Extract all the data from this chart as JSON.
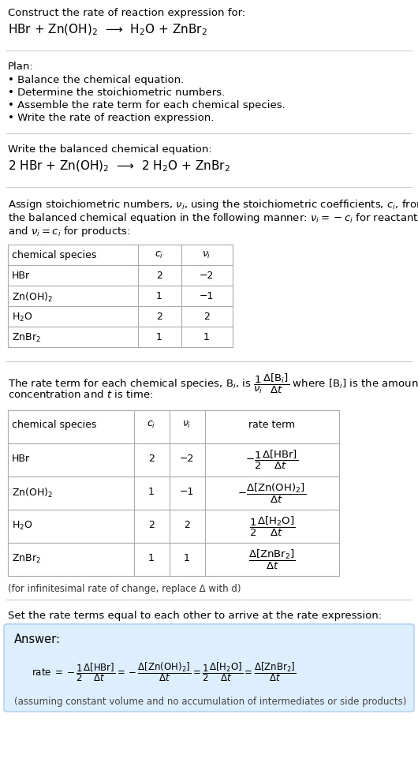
{
  "title_line1": "Construct the rate of reaction expression for:",
  "reaction_unbalanced": "HBr + Zn(OH)$_2$  ⟶  H$_2$O + ZnBr$_2$",
  "plan_header": "Plan:",
  "plan_items": [
    "• Balance the chemical equation.",
    "• Determine the stoichiometric numbers.",
    "• Assemble the rate term for each chemical species.",
    "• Write the rate of reaction expression."
  ],
  "balanced_header": "Write the balanced chemical equation:",
  "reaction_balanced": "2 HBr + Zn(OH)$_2$  ⟶  2 H$_2$O + ZnBr$_2$",
  "stoich_intro_lines": [
    "Assign stoichiometric numbers, $\\nu_i$, using the stoichiometric coefficients, $c_i$, from",
    "the balanced chemical equation in the following manner: $\\nu_i = -c_i$ for reactants",
    "and $\\nu_i = c_i$ for products:"
  ],
  "table1_headers": [
    "chemical species",
    "$c_i$",
    "$\\nu_i$"
  ],
  "table1_rows": [
    [
      "HBr",
      "2",
      "−2"
    ],
    [
      "Zn(OH)$_2$",
      "1",
      "−1"
    ],
    [
      "H$_2$O",
      "2",
      "2"
    ],
    [
      "ZnBr$_2$",
      "1",
      "1"
    ]
  ],
  "rate_term_intro_lines": [
    "The rate term for each chemical species, B$_i$, is $\\dfrac{1}{\\nu_i}\\dfrac{\\Delta[\\mathrm{B}_i]}{\\Delta t}$ where [B$_i$] is the amount",
    "concentration and $t$ is time:"
  ],
  "table2_headers": [
    "chemical species",
    "$c_i$",
    "$\\nu_i$",
    "rate term"
  ],
  "table2_rows": [
    [
      "HBr",
      "2",
      "−2"
    ],
    [
      "Zn(OH)$_2$",
      "1",
      "−1"
    ],
    [
      "H$_2$O",
      "2",
      "2"
    ],
    [
      "ZnBr$_2$",
      "1",
      "1"
    ]
  ],
  "rate_terms_math": [
    "$-\\dfrac{1}{2}\\dfrac{\\Delta[\\mathrm{HBr}]}{\\Delta t}$",
    "$-\\dfrac{\\Delta[\\mathrm{Zn(OH)_2}]}{\\Delta t}$",
    "$\\dfrac{1}{2}\\dfrac{\\Delta[\\mathrm{H_2O}]}{\\Delta t}$",
    "$\\dfrac{\\Delta[\\mathrm{ZnBr_2}]}{\\Delta t}$"
  ],
  "infinitesimal_note": "(for infinitesimal rate of change, replace Δ with d)",
  "set_equal_intro": "Set the rate terms equal to each other to arrive at the rate expression:",
  "answer_label": "Answer:",
  "answer_box_color": "#ddeeff",
  "answer_border_color": "#aaccee",
  "assumption_note": "(assuming constant volume and no accumulation of intermediates or side products)",
  "bg_color": "#ffffff",
  "text_color": "#000000",
  "table_line_color": "#aaaaaa",
  "section_line_color": "#cccccc"
}
